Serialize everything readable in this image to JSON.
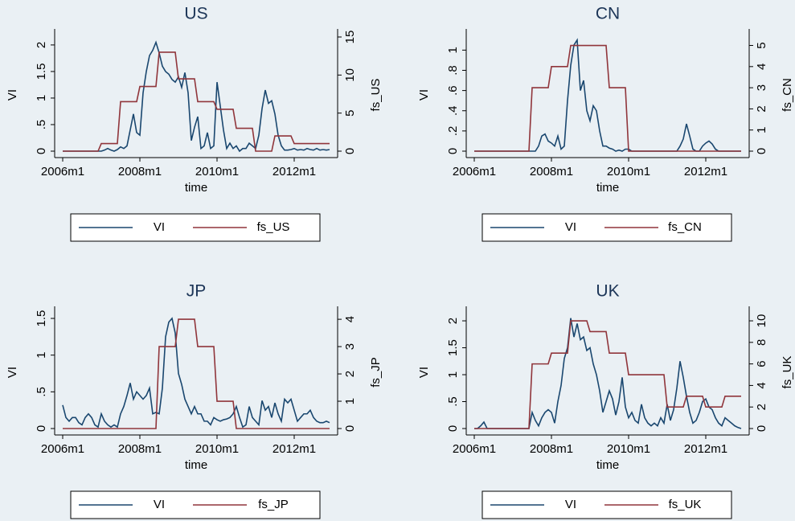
{
  "chart_data": [
    {
      "type": "line",
      "title": "US",
      "xlabel": "time",
      "ylabel": "VI",
      "y2label": "fs_US",
      "x": [
        552,
        553,
        554,
        555,
        556,
        557,
        558,
        559,
        560,
        561,
        562,
        563,
        564,
        565,
        566,
        567,
        568,
        569,
        570,
        571,
        572,
        573,
        574,
        575,
        576,
        577,
        578,
        579,
        580,
        581,
        582,
        583,
        584,
        585,
        586,
        587,
        588,
        589,
        590,
        591,
        592,
        593,
        594,
        595,
        596,
        597,
        598,
        599,
        600,
        601,
        602,
        603,
        604,
        605,
        606,
        607,
        608,
        609,
        610,
        611,
        612,
        613,
        614,
        615,
        616,
        617,
        618,
        619,
        620,
        621,
        622,
        623,
        624,
        625,
        626,
        627,
        628,
        629,
        630,
        631,
        632,
        633,
        634,
        635
      ],
      "xlim": [
        552,
        635
      ],
      "xticks": [
        {
          "value": 552,
          "label": "2006m1"
        },
        {
          "value": 576,
          "label": "2008m1"
        },
        {
          "value": 600,
          "label": "2010m1"
        },
        {
          "value": 624,
          "label": "2012m1"
        }
      ],
      "ylim": [
        0,
        2.15
      ],
      "yticks": [
        0,
        {
          "value": 0.5,
          "label": ".5"
        },
        1,
        1.5,
        2
      ],
      "y2lim": [
        0,
        15
      ],
      "y2ticks": [
        0,
        5,
        10,
        15
      ],
      "series": [
        {
          "name": "VI",
          "color": "#1a476f",
          "values": [
            0,
            0,
            0,
            0,
            0,
            0,
            0,
            0,
            0,
            0,
            0,
            0,
            0,
            0.02,
            0.05,
            0.02,
            0,
            0.03,
            0.08,
            0.05,
            0.1,
            0.4,
            0.7,
            0.35,
            0.3,
            1.1,
            1.5,
            1.8,
            1.9,
            2.05,
            1.85,
            1.6,
            1.5,
            1.45,
            1.35,
            1.3,
            1.4,
            1.2,
            1.48,
            1.1,
            0.2,
            0.45,
            0.65,
            0.05,
            0.1,
            0.35,
            0.05,
            0.1,
            1.3,
            0.85,
            0.4,
            0.05,
            0.15,
            0.05,
            0.1,
            0,
            0.05,
            0.05,
            0.15,
            0.1,
            0.05,
            0.3,
            0.8,
            1.15,
            0.9,
            0.95,
            0.7,
            0.3,
            0.1,
            0.02,
            0.02,
            0.03,
            0.05,
            0.02,
            0.03,
            0.02,
            0.05,
            0.03,
            0.02,
            0.05,
            0.02,
            0.03,
            0.02,
            0.03
          ]
        },
        {
          "name": "fs_US",
          "color": "#90353b",
          "axis": "y2",
          "values": [
            0,
            0,
            0,
            0,
            0,
            0,
            0,
            0,
            0,
            0,
            0,
            0,
            1,
            1,
            1,
            1,
            1,
            1,
            6.5,
            6.5,
            6.5,
            6.5,
            6.5,
            6.5,
            8.5,
            8.5,
            8.5,
            8.5,
            8.5,
            8.5,
            13,
            13,
            13,
            13,
            13,
            13,
            9.5,
            9.5,
            9.5,
            9.5,
            9.5,
            9.5,
            6.5,
            6.5,
            6.5,
            6.5,
            6.5,
            6.5,
            5.5,
            5.5,
            5.5,
            5.5,
            5.5,
            5.5,
            3,
            3,
            3,
            3,
            3,
            3,
            0,
            0,
            0,
            0,
            0,
            0,
            2,
            2,
            2,
            2,
            2,
            2,
            1,
            1,
            1,
            1,
            1,
            1,
            1,
            1,
            1,
            1,
            1,
            1
          ]
        }
      ]
    },
    {
      "type": "line",
      "title": "CN",
      "xlabel": "time",
      "ylabel": "VI",
      "y2label": "fs_CN",
      "x": [
        552,
        553,
        554,
        555,
        556,
        557,
        558,
        559,
        560,
        561,
        562,
        563,
        564,
        565,
        566,
        567,
        568,
        569,
        570,
        571,
        572,
        573,
        574,
        575,
        576,
        577,
        578,
        579,
        580,
        581,
        582,
        583,
        584,
        585,
        586,
        587,
        588,
        589,
        590,
        591,
        592,
        593,
        594,
        595,
        596,
        597,
        598,
        599,
        600,
        601,
        602,
        603,
        604,
        605,
        606,
        607,
        608,
        609,
        610,
        611,
        612,
        613,
        614,
        615,
        616,
        617,
        618,
        619,
        620,
        621,
        622,
        623,
        624,
        625,
        626,
        627,
        628,
        629,
        630,
        631,
        632,
        633,
        634,
        635
      ],
      "xlim": [
        552,
        635
      ],
      "xticks": [
        {
          "value": 552,
          "label": "2006m1"
        },
        {
          "value": 576,
          "label": "2008m1"
        },
        {
          "value": 600,
          "label": "2010m1"
        },
        {
          "value": 624,
          "label": "2012m1"
        }
      ],
      "ylim": [
        0,
        1.13
      ],
      "yticks": [
        0,
        {
          "value": 0.2,
          "label": ".2"
        },
        {
          "value": 0.4,
          "label": ".4"
        },
        {
          "value": 0.6,
          "label": ".6"
        },
        {
          "value": 0.8,
          "label": ".8"
        },
        1
      ],
      "y2lim": [
        0,
        5.4
      ],
      "y2ticks": [
        0,
        1,
        2,
        3,
        4,
        5
      ],
      "series": [
        {
          "name": "VI",
          "color": "#1a476f",
          "values": [
            0,
            0,
            0,
            0,
            0,
            0,
            0,
            0,
            0,
            0,
            0,
            0,
            0,
            0,
            0,
            0,
            0,
            0,
            0,
            0,
            0.05,
            0.15,
            0.17,
            0.1,
            0.08,
            0.05,
            0.15,
            0.02,
            0.05,
            0.5,
            0.85,
            1.05,
            1.1,
            0.6,
            0.7,
            0.4,
            0.3,
            0.45,
            0.4,
            0.2,
            0.05,
            0.05,
            0.03,
            0.02,
            0,
            0.01,
            0,
            0.02,
            0.02,
            0,
            0,
            0,
            0,
            0,
            0,
            0,
            0,
            0,
            0,
            0,
            0,
            0,
            0,
            0,
            0.05,
            0.12,
            0.27,
            0.15,
            0.02,
            0,
            0,
            0.05,
            0.08,
            0.1,
            0.07,
            0.02,
            0,
            0,
            0,
            0,
            0,
            0,
            0,
            0
          ]
        },
        {
          "name": "fs_CN",
          "color": "#90353b",
          "axis": "y2",
          "values": [
            0,
            0,
            0,
            0,
            0,
            0,
            0,
            0,
            0,
            0,
            0,
            0,
            0,
            0,
            0,
            0,
            0,
            0,
            3,
            3,
            3,
            3,
            3,
            3,
            4,
            4,
            4,
            4,
            4,
            4,
            5,
            5,
            5,
            5,
            5,
            5,
            5,
            5,
            5,
            5,
            5,
            5,
            3,
            3,
            3,
            3,
            3,
            3,
            0,
            0,
            0,
            0,
            0,
            0,
            0,
            0,
            0,
            0,
            0,
            0,
            0,
            0,
            0,
            0,
            0,
            0,
            0,
            0,
            0,
            0,
            0,
            0,
            0,
            0,
            0,
            0,
            0,
            0,
            0,
            0,
            0,
            0,
            0,
            0
          ]
        }
      ]
    },
    {
      "type": "line",
      "title": "JP",
      "xlabel": "time",
      "ylabel": "VI",
      "y2label": "fs_JP",
      "x": [
        552,
        553,
        554,
        555,
        556,
        557,
        558,
        559,
        560,
        561,
        562,
        563,
        564,
        565,
        566,
        567,
        568,
        569,
        570,
        571,
        572,
        573,
        574,
        575,
        576,
        577,
        578,
        579,
        580,
        581,
        582,
        583,
        584,
        585,
        586,
        587,
        588,
        589,
        590,
        591,
        592,
        593,
        594,
        595,
        596,
        597,
        598,
        599,
        600,
        601,
        602,
        603,
        604,
        605,
        606,
        607,
        608,
        609,
        610,
        611,
        612,
        613,
        614,
        615,
        616,
        617,
        618,
        619,
        620,
        621,
        622,
        623,
        624,
        625,
        626,
        627,
        628,
        629,
        630,
        631,
        632,
        633,
        634,
        635
      ],
      "xlim": [
        552,
        635
      ],
      "xticks": [
        {
          "value": 552,
          "label": "2006m1"
        },
        {
          "value": 576,
          "label": "2008m1"
        },
        {
          "value": 600,
          "label": "2010m1"
        },
        {
          "value": 624,
          "label": "2012m1"
        }
      ],
      "ylim": [
        0,
        1.555
      ],
      "yticks": [
        0,
        {
          "value": 0.5,
          "label": ".5"
        },
        1,
        1.5
      ],
      "y2lim": [
        0,
        4.18
      ],
      "y2ticks": [
        0,
        1,
        2,
        3,
        4
      ],
      "series": [
        {
          "name": "VI",
          "color": "#1a476f",
          "values": [
            0.32,
            0.15,
            0.1,
            0.15,
            0.15,
            0.08,
            0.05,
            0.15,
            0.2,
            0.15,
            0.05,
            0.02,
            0.2,
            0.1,
            0.05,
            0.02,
            0.05,
            0.02,
            0.2,
            0.3,
            0.45,
            0.62,
            0.4,
            0.5,
            0.45,
            0.4,
            0.45,
            0.55,
            0.2,
            0.22,
            0.2,
            0.55,
            1.25,
            1.45,
            1.5,
            1.3,
            0.75,
            0.6,
            0.4,
            0.3,
            0.2,
            0.3,
            0.2,
            0.2,
            0.1,
            0.1,
            0.05,
            0.15,
            0.12,
            0.1,
            0.12,
            0.13,
            0.15,
            0.2,
            0.3,
            0.15,
            0.02,
            0.05,
            0.3,
            0.15,
            0.1,
            0.05,
            0.38,
            0.25,
            0.3,
            0.15,
            0.35,
            0.2,
            0.1,
            0.4,
            0.35,
            0.4,
            0.25,
            0.1,
            0.15,
            0.2,
            0.2,
            0.25,
            0.15,
            0.1,
            0.08,
            0.08,
            0.1,
            0.08
          ]
        },
        {
          "name": "fs_JP",
          "color": "#90353b",
          "axis": "y2",
          "values": [
            0,
            0,
            0,
            0,
            0,
            0,
            0,
            0,
            0,
            0,
            0,
            0,
            0,
            0,
            0,
            0,
            0,
            0,
            0,
            0,
            0,
            0,
            0,
            0,
            0,
            0,
            0,
            0,
            0,
            0,
            3,
            3,
            3,
            3,
            3,
            3,
            4,
            4,
            4,
            4,
            4,
            4,
            3,
            3,
            3,
            3,
            3,
            3,
            1,
            1,
            1,
            1,
            1,
            1,
            0,
            0,
            0,
            0,
            0,
            0,
            0,
            0,
            0,
            0,
            0,
            0,
            0,
            0,
            0,
            0,
            0,
            0,
            0,
            0,
            0,
            0,
            0,
            0,
            0,
            0,
            0,
            0,
            0,
            0
          ]
        }
      ]
    },
    {
      "type": "line",
      "title": "UK",
      "xlabel": "time",
      "ylabel": "VI",
      "y2label": "fs_UK",
      "x": [
        552,
        553,
        554,
        555,
        556,
        557,
        558,
        559,
        560,
        561,
        562,
        563,
        564,
        565,
        566,
        567,
        568,
        569,
        570,
        571,
        572,
        573,
        574,
        575,
        576,
        577,
        578,
        579,
        580,
        581,
        582,
        583,
        584,
        585,
        586,
        587,
        588,
        589,
        590,
        591,
        592,
        593,
        594,
        595,
        596,
        597,
        598,
        599,
        600,
        601,
        602,
        603,
        604,
        605,
        606,
        607,
        608,
        609,
        610,
        611,
        612,
        613,
        614,
        615,
        616,
        617,
        618,
        619,
        620,
        621,
        622,
        623,
        624,
        625,
        626,
        627,
        628,
        629,
        630,
        631,
        632,
        633,
        634,
        635
      ],
      "xlim": [
        552,
        635
      ],
      "xticks": [
        {
          "value": 552,
          "label": "2006m1"
        },
        {
          "value": 576,
          "label": "2008m1"
        },
        {
          "value": 600,
          "label": "2010m1"
        },
        {
          "value": 624,
          "label": "2012m1"
        }
      ],
      "ylim": [
        0,
        2.12
      ],
      "yticks": [
        0,
        {
          "value": 0.5,
          "label": ".5"
        },
        1,
        1.5,
        2
      ],
      "y2lim": [
        0,
        10.6
      ],
      "y2ticks": [
        0,
        2,
        4,
        6,
        8,
        10
      ],
      "series": [
        {
          "name": "VI",
          "color": "#1a476f",
          "values": [
            0,
            0,
            0.05,
            0.12,
            0,
            0,
            0,
            0,
            0,
            0,
            0,
            0,
            0,
            0,
            0,
            0,
            0,
            0,
            0.3,
            0.15,
            0.05,
            0.2,
            0.3,
            0.35,
            0.3,
            0.1,
            0.5,
            0.8,
            1.3,
            1.5,
            2.05,
            1.7,
            1.95,
            1.65,
            1.7,
            1.45,
            1.5,
            1.2,
            1,
            0.7,
            0.3,
            0.5,
            0.7,
            0.55,
            0.25,
            0.5,
            0.95,
            0.4,
            0.2,
            0.3,
            0.15,
            0.1,
            0.45,
            0.2,
            0.1,
            0.05,
            0.1,
            0.05,
            0.2,
            0.1,
            0.45,
            0.15,
            0.35,
            0.75,
            1.25,
            0.95,
            0.6,
            0.3,
            0.1,
            0.15,
            0.3,
            0.5,
            0.55,
            0.4,
            0.35,
            0.2,
            0.1,
            0.05,
            0.2,
            0.15,
            0.1,
            0.05,
            0.02,
            0
          ]
        },
        {
          "name": "fs_UK",
          "color": "#90353b",
          "axis": "y2",
          "values": [
            0,
            0,
            0,
            0,
            0,
            0,
            0,
            0,
            0,
            0,
            0,
            0,
            0,
            0,
            0,
            0,
            0,
            0,
            6,
            6,
            6,
            6,
            6,
            6,
            7,
            7,
            7,
            7,
            7,
            7,
            10,
            10,
            10,
            10,
            10,
            10,
            9,
            9,
            9,
            9,
            9,
            9,
            7,
            7,
            7,
            7,
            7,
            7,
            5,
            5,
            5,
            5,
            5,
            5,
            5,
            5,
            5,
            5,
            5,
            5,
            2,
            2,
            2,
            2,
            2,
            2,
            3,
            3,
            3,
            3,
            3,
            3,
            2,
            2,
            2,
            2,
            2,
            2,
            3,
            3,
            3,
            3,
            3,
            3
          ]
        }
      ]
    }
  ]
}
